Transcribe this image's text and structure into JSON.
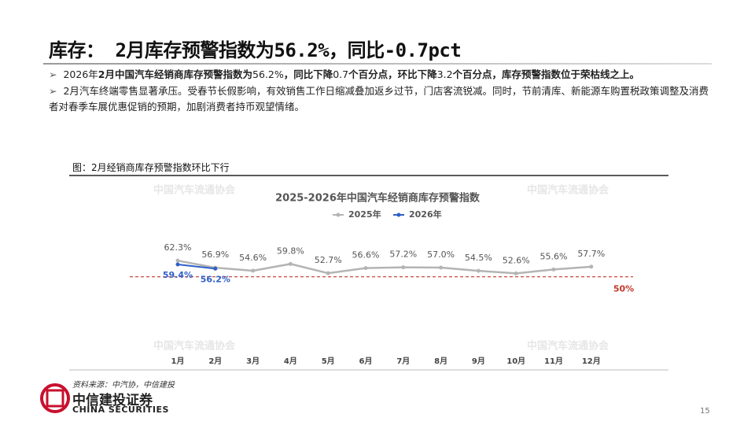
{
  "header": {
    "title": "库存：  2月库存预警指数为56.2%，同比-0.7pct"
  },
  "bullets": [
    [
      "2026年",
      "2月中国汽车经销商库存预警指数为",
      "56.2%",
      "，同比下降",
      "0.7",
      "个百分点，环比下降",
      "3.2",
      "个百分点，库存预警指数位于荣枯线之上。"
    ],
    [
      "2月汽车终端零售显著承压。受春节长假影响，有效销售工作日缩减叠加返乡过节，门店客流锐减。同时，节前清库、新能源车购置税政策调整及消费者对春季车展优惠促销的预期，加剧消费者持币观望情绪。"
    ]
  ],
  "figure_caption": "图：2月经销商库存预警指数环比下行",
  "source": "资料来源：中汽协，中信建投",
  "logo": {
    "name": "中信建投证券",
    "english": "CHINA SECURITIES"
  },
  "page_number": "15",
  "chart_data": {
    "type": "line",
    "title": "2025-2026年中国汽车经销商库存预警指数",
    "watermark": "中国汽车流通协会",
    "categories": [
      "1月",
      "2月",
      "3月",
      "4月",
      "5月",
      "6月",
      "7月",
      "8月",
      "9月",
      "10月",
      "11月",
      "12月"
    ],
    "ylim": [
      0,
      120
    ],
    "series": [
      {
        "name": "2025年",
        "color": "#b4b4b4",
        "values": [
          62.3,
          56.9,
          54.6,
          59.8,
          52.7,
          56.6,
          57.2,
          57.0,
          54.5,
          52.6,
          55.6,
          57.7
        ],
        "value_labels": [
          "62.3%",
          "56.9%",
          "54.6%",
          "59.8%",
          "52.7%",
          "56.6%",
          "57.2%",
          "57.0%",
          "54.5%",
          "52.6%",
          "55.6%",
          "57.7%"
        ]
      },
      {
        "name": "2026年",
        "color": "#2e5fc8",
        "values": [
          59.4,
          56.2,
          null,
          null,
          null,
          null,
          null,
          null,
          null,
          null,
          null,
          null
        ],
        "value_labels": [
          "59.4%",
          "56.2%",
          null,
          null,
          null,
          null,
          null,
          null,
          null,
          null,
          null,
          null
        ]
      }
    ],
    "reference_line": {
      "value": 50,
      "label": "50%",
      "color": "#c0392b"
    }
  }
}
